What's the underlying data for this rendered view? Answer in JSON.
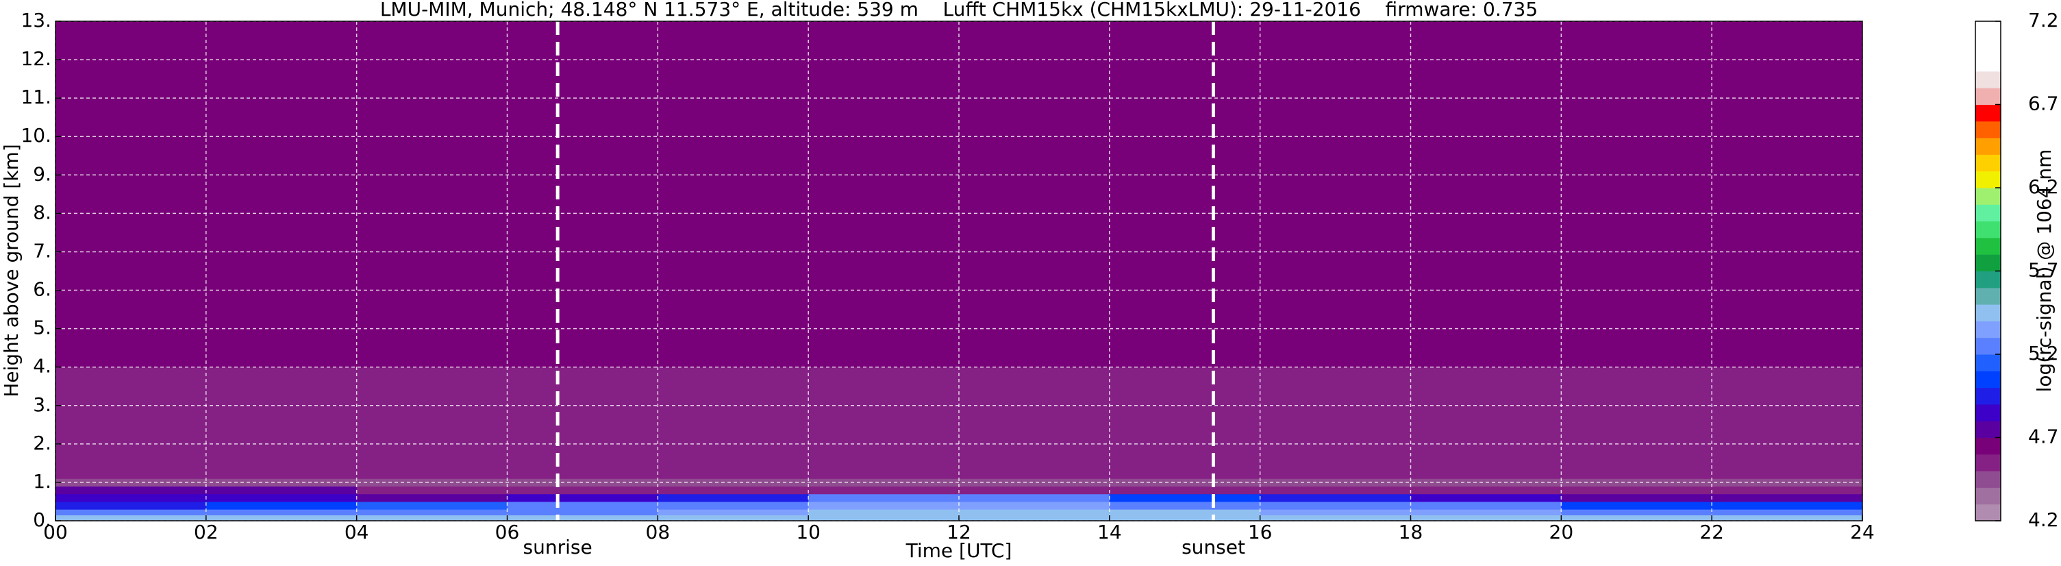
{
  "chart_data": {
    "type": "heatmap",
    "title": "LMU-MIM, Munich; 48.148° N 11.573° E, altitude: 539 m    Lufft CHM15kx (CHM15kxLMU): 29-11-2016    firmware: 0.735",
    "xlabel": "Time [UTC]",
    "ylabel": "Height above ground [km]",
    "colorbar_label": "log(rc-signal) @ 1064 nm",
    "xbins": [
      0,
      2,
      4,
      6,
      8,
      10,
      12,
      14,
      16,
      18,
      20,
      22,
      24
    ],
    "ybins": [
      0,
      0.15,
      0.3,
      0.5,
      0.7,
      0.9,
      1.1,
      2,
      4,
      13
    ],
    "z": [
      [
        5.5,
        5.5,
        5.5,
        5.5,
        5.5,
        5.5,
        5.5,
        5.5,
        5.5,
        5.5,
        5.5,
        5.5
      ],
      [
        5.3,
        5.3,
        5.3,
        5.3,
        5.35,
        5.4,
        5.4,
        5.4,
        5.35,
        5.35,
        5.3,
        5.3
      ],
      [
        5.0,
        5.1,
        5.15,
        5.2,
        5.3,
        5.35,
        5.35,
        5.3,
        5.25,
        5.2,
        5.1,
        5.1
      ],
      [
        4.85,
        4.85,
        4.8,
        4.85,
        5.0,
        5.2,
        5.2,
        5.1,
        4.9,
        4.85,
        4.8,
        4.8
      ],
      [
        4.75,
        4.7,
        4.6,
        4.55,
        4.55,
        4.55,
        4.55,
        4.55,
        4.55,
        4.55,
        4.55,
        4.55
      ],
      [
        4.5,
        4.5,
        4.5,
        4.5,
        4.5,
        4.5,
        4.5,
        4.5,
        4.5,
        4.5,
        4.5,
        4.5
      ],
      [
        4.55,
        4.55,
        4.55,
        4.55,
        4.55,
        4.55,
        4.55,
        4.55,
        4.55,
        4.55,
        4.55,
        4.55
      ],
      [
        4.6,
        4.6,
        4.6,
        4.6,
        4.6,
        4.6,
        4.6,
        4.6,
        4.6,
        4.6,
        4.6,
        4.6
      ],
      [
        4.65,
        4.65,
        4.65,
        4.65,
        4.65,
        4.65,
        4.65,
        4.65,
        4.65,
        4.65,
        4.65,
        4.65
      ]
    ],
    "xlim": [
      0,
      24
    ],
    "ylim": [
      0,
      13
    ],
    "xticks": [
      {
        "value": 0,
        "label": "00"
      },
      {
        "value": 2,
        "label": "02"
      },
      {
        "value": 4,
        "label": "04"
      },
      {
        "value": 6,
        "label": "06"
      },
      {
        "value": 8,
        "label": "08"
      },
      10,
      12,
      14,
      16,
      18,
      20,
      22,
      24
    ],
    "yticks": [
      {
        "value": 0,
        "label": "0."
      },
      {
        "value": 1,
        "label": "1."
      },
      {
        "value": 2,
        "label": "2."
      },
      {
        "value": 3,
        "label": "3."
      },
      {
        "value": 4,
        "label": "4."
      },
      {
        "value": 5,
        "label": "5."
      },
      {
        "value": 6,
        "label": "6."
      },
      {
        "value": 7,
        "label": "7."
      },
      {
        "value": 8,
        "label": "8."
      },
      {
        "value": 9,
        "label": "9."
      },
      {
        "value": 10,
        "label": "10."
      },
      {
        "value": 11,
        "label": "11."
      },
      {
        "value": 12,
        "label": "12."
      },
      {
        "value": 13,
        "label": "13."
      }
    ],
    "clim": [
      4.2,
      7.2
    ],
    "cticks": [
      4.2,
      4.7,
      5.2,
      5.7,
      6.2,
      6.7,
      7.2
    ],
    "colors": [
      "#b08cb0",
      "#a070a0",
      "#904c90",
      "#852085",
      "#780078",
      "#5a00a0",
      "#3c00c8",
      "#1e1ee6",
      "#0040ff",
      "#2060ff",
      "#5a80ff",
      "#80a0ff",
      "#90c0f0",
      "#60b0b0",
      "#20a080",
      "#10a040",
      "#20c040",
      "#40e070",
      "#60f0a0",
      "#a0f070",
      "#f0f000",
      "#ffd000",
      "#ffa000",
      "#ff6000",
      "#ff0000",
      "#f0b0b0",
      "#f0e0e0",
      "#ffffff",
      "#ffffff",
      "#ffffff"
    ],
    "annotations": [
      {
        "x": 6.67,
        "label": "sunrise"
      },
      {
        "x": 15.38,
        "label": "sunset"
      }
    ],
    "grid": true
  }
}
